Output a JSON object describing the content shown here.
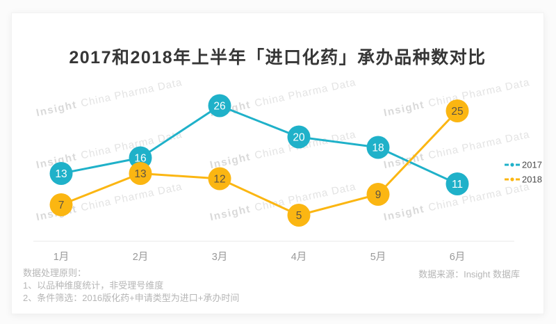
{
  "title": "2017和2018年上半年「进口化药」承办品种数对比",
  "watermark": {
    "bold": "Insight",
    "rest": "China Pharma Data"
  },
  "chart_data": {
    "type": "line",
    "categories": [
      "1月",
      "2月",
      "3月",
      "4月",
      "5月",
      "6月"
    ],
    "series": [
      {
        "name": "2017",
        "color": "#1fb1c9",
        "value_text_color": "#ffffff",
        "values": [
          13,
          16,
          26,
          20,
          18,
          11
        ]
      },
      {
        "name": "2018",
        "color": "#fbb612",
        "value_text_color": "#5c5344",
        "values": [
          7,
          13,
          12,
          5,
          9,
          25
        ]
      }
    ],
    "ylim": [
      0,
      26
    ],
    "xlabel": "",
    "ylabel": "",
    "grid": false,
    "legend_position": "right",
    "axis_label_color": "#999999",
    "axis_line_color": "#e8e8e8",
    "legend_text_color": "#4a4a4a"
  },
  "footer": {
    "left_title": "数据处理原则：",
    "left_lines": [
      "1、以品种维度统计，非受理号维度",
      "2、条件筛选：2016版化药+申请类型为进口+承办时间"
    ],
    "source": "数据来源：Insight 数据库"
  }
}
